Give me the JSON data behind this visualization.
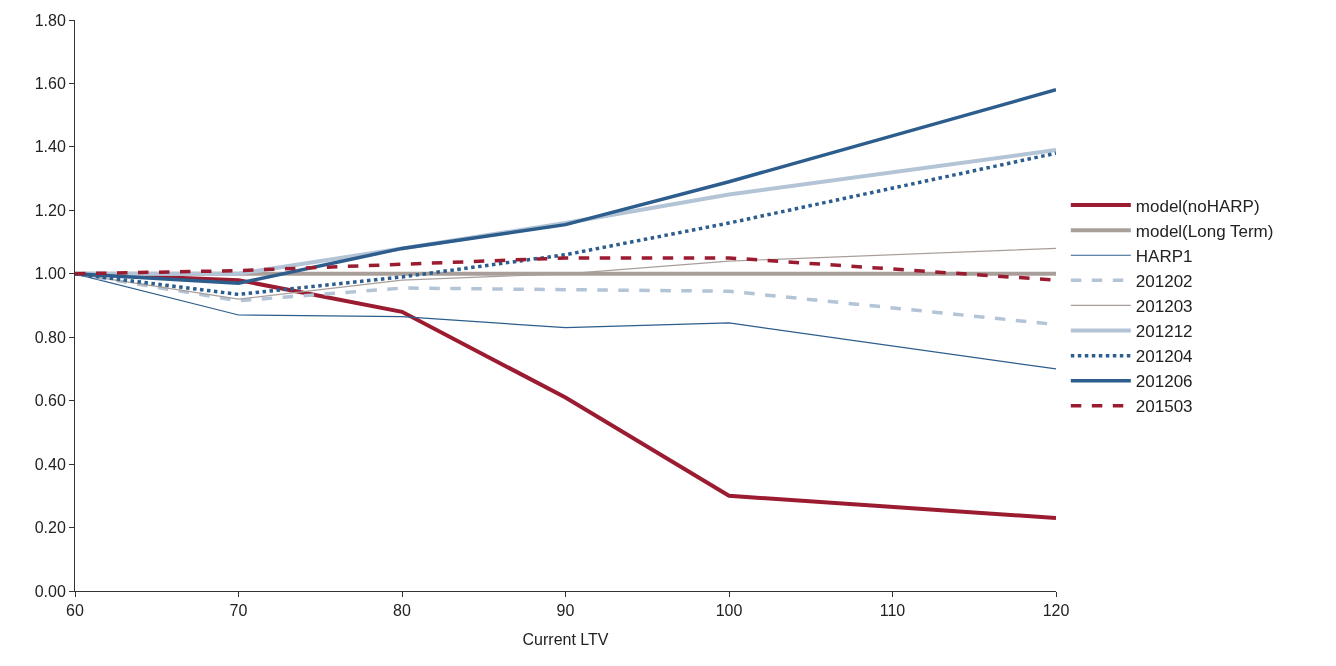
{
  "chart_data": {
    "type": "line",
    "xlabel": "Current LTV",
    "x": [
      60,
      70,
      80,
      90,
      100,
      120
    ],
    "xlim": [
      60,
      120
    ],
    "xticks": [
      60,
      70,
      80,
      90,
      100,
      110,
      120
    ],
    "ylim": [
      0,
      1.8
    ],
    "yticks": [
      {
        "value": 0,
        "label": "0.00"
      },
      {
        "value": 0.2,
        "label": "0.20"
      },
      {
        "value": 0.4,
        "label": "0.40"
      },
      {
        "value": 0.6,
        "label": "0.60"
      },
      {
        "value": 0.8,
        "label": "0.80"
      },
      {
        "value": 1.0,
        "label": "1.00"
      },
      {
        "value": 1.2,
        "label": "1.20"
      },
      {
        "value": 1.4,
        "label": "1.40"
      },
      {
        "value": 1.6,
        "label": "1.60"
      },
      {
        "value": 1.8,
        "label": "1.80"
      }
    ],
    "legend": "right",
    "marker": "none",
    "series": [
      {
        "name": "model(noHARP)",
        "color": "#9b1b30",
        "line_style": "solid",
        "values": [
          1.0,
          0.98,
          0.88,
          0.61,
          0.3,
          0.23
        ]
      },
      {
        "name": "model(Long Term)",
        "color": "#a89f9a",
        "line_style": "solid",
        "values": [
          1.0,
          1.0,
          1.0,
          1.0,
          1.0,
          1.0
        ]
      },
      {
        "name": "HARP1",
        "color": "#2c5d8c",
        "line_style": "solid",
        "values": [
          1.0,
          0.87,
          0.865,
          0.83,
          0.845,
          0.7
        ]
      },
      {
        "name": "201202",
        "color": "#b3c4d6",
        "line_style": "dashed",
        "values": [
          1.0,
          0.915,
          0.955,
          0.95,
          0.945,
          0.84
        ]
      },
      {
        "name": "201203",
        "color": "#a89f9a",
        "line_style": "solid",
        "values": [
          1.0,
          0.92,
          0.98,
          1.0,
          1.04,
          1.08
        ]
      },
      {
        "name": "201212",
        "color": "#b3c4d6",
        "line_style": "solid",
        "values": [
          1.0,
          1.0,
          1.08,
          1.16,
          1.25,
          1.39
        ]
      },
      {
        "name": "201204",
        "color": "#2c5d8c",
        "line_style": "dotted",
        "values": [
          1.0,
          0.935,
          0.99,
          1.06,
          1.16,
          1.38
        ]
      },
      {
        "name": "201206",
        "color": "#2c5d8c",
        "line_style": "solid",
        "values": [
          1.0,
          0.97,
          1.08,
          1.155,
          1.29,
          1.58
        ]
      },
      {
        "name": "201503",
        "color": "#9b1b30",
        "line_style": "dashed",
        "values": [
          1.0,
          1.01,
          1.03,
          1.05,
          1.05,
          0.98
        ]
      }
    ]
  }
}
